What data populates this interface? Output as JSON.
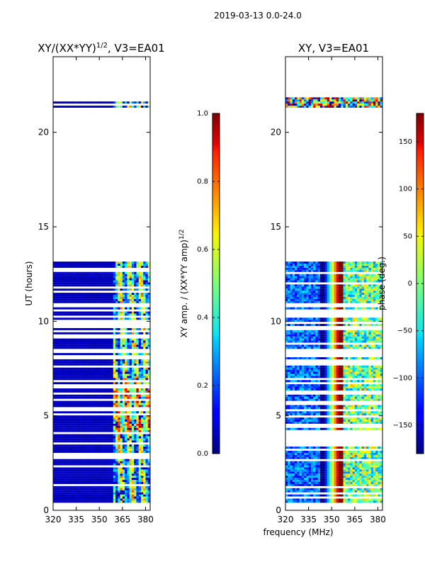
{
  "figure_title": "2019-03-13 0.0-24.0",
  "chart_data": [
    {
      "type": "heatmap",
      "title_main": "XY/(XX*YY)",
      "title_sup": "1/2",
      "title_tail": ", V3=EA01",
      "xlabel": "",
      "ylabel": "UT (hours)",
      "xlim": [
        320,
        383
      ],
      "ylim": [
        0,
        24
      ],
      "xticks": [
        320,
        335,
        350,
        365,
        380
      ],
      "yticks": [
        0,
        5,
        10,
        15,
        20
      ],
      "colorbar": {
        "label_main": "XY amp. / (XX*YY amp)",
        "label_sup": "1/2",
        "range": [
          0.0,
          1.0
        ],
        "ticks": [
          "0.0",
          "0.2",
          "0.4",
          "0.6",
          "0.8",
          "1.0"
        ],
        "tick_values": [
          0.0,
          0.2,
          0.4,
          0.6,
          0.8,
          1.0
        ]
      },
      "data_blocks_hours": [
        [
          0.4,
          2.6
        ],
        [
          2.6,
          13.1
        ],
        [
          21.3,
          21.8
        ]
      ],
      "active_band_mhz": [
        360,
        382
      ],
      "background_value": 0.05
    },
    {
      "type": "heatmap",
      "title": "XY, V3=EA01",
      "xlabel": "frequency (MHz)",
      "ylabel": "",
      "xlim": [
        320,
        383
      ],
      "ylim": [
        0,
        24
      ],
      "xticks": [
        320,
        335,
        350,
        365,
        380
      ],
      "yticks": [
        0,
        5,
        10,
        15,
        20
      ],
      "colorbar": {
        "label": "phase (deg.)",
        "range": [
          -180,
          180
        ],
        "ticks": [
          "−150",
          "−100",
          "−50",
          "0",
          "50",
          "100",
          "150"
        ],
        "tick_values": [
          -150,
          -100,
          -50,
          0,
          50,
          100,
          150
        ]
      },
      "data_blocks_hours": [
        [
          0.4,
          2.6
        ],
        [
          2.6,
          13.1
        ],
        [
          21.3,
          21.8
        ]
      ]
    }
  ]
}
